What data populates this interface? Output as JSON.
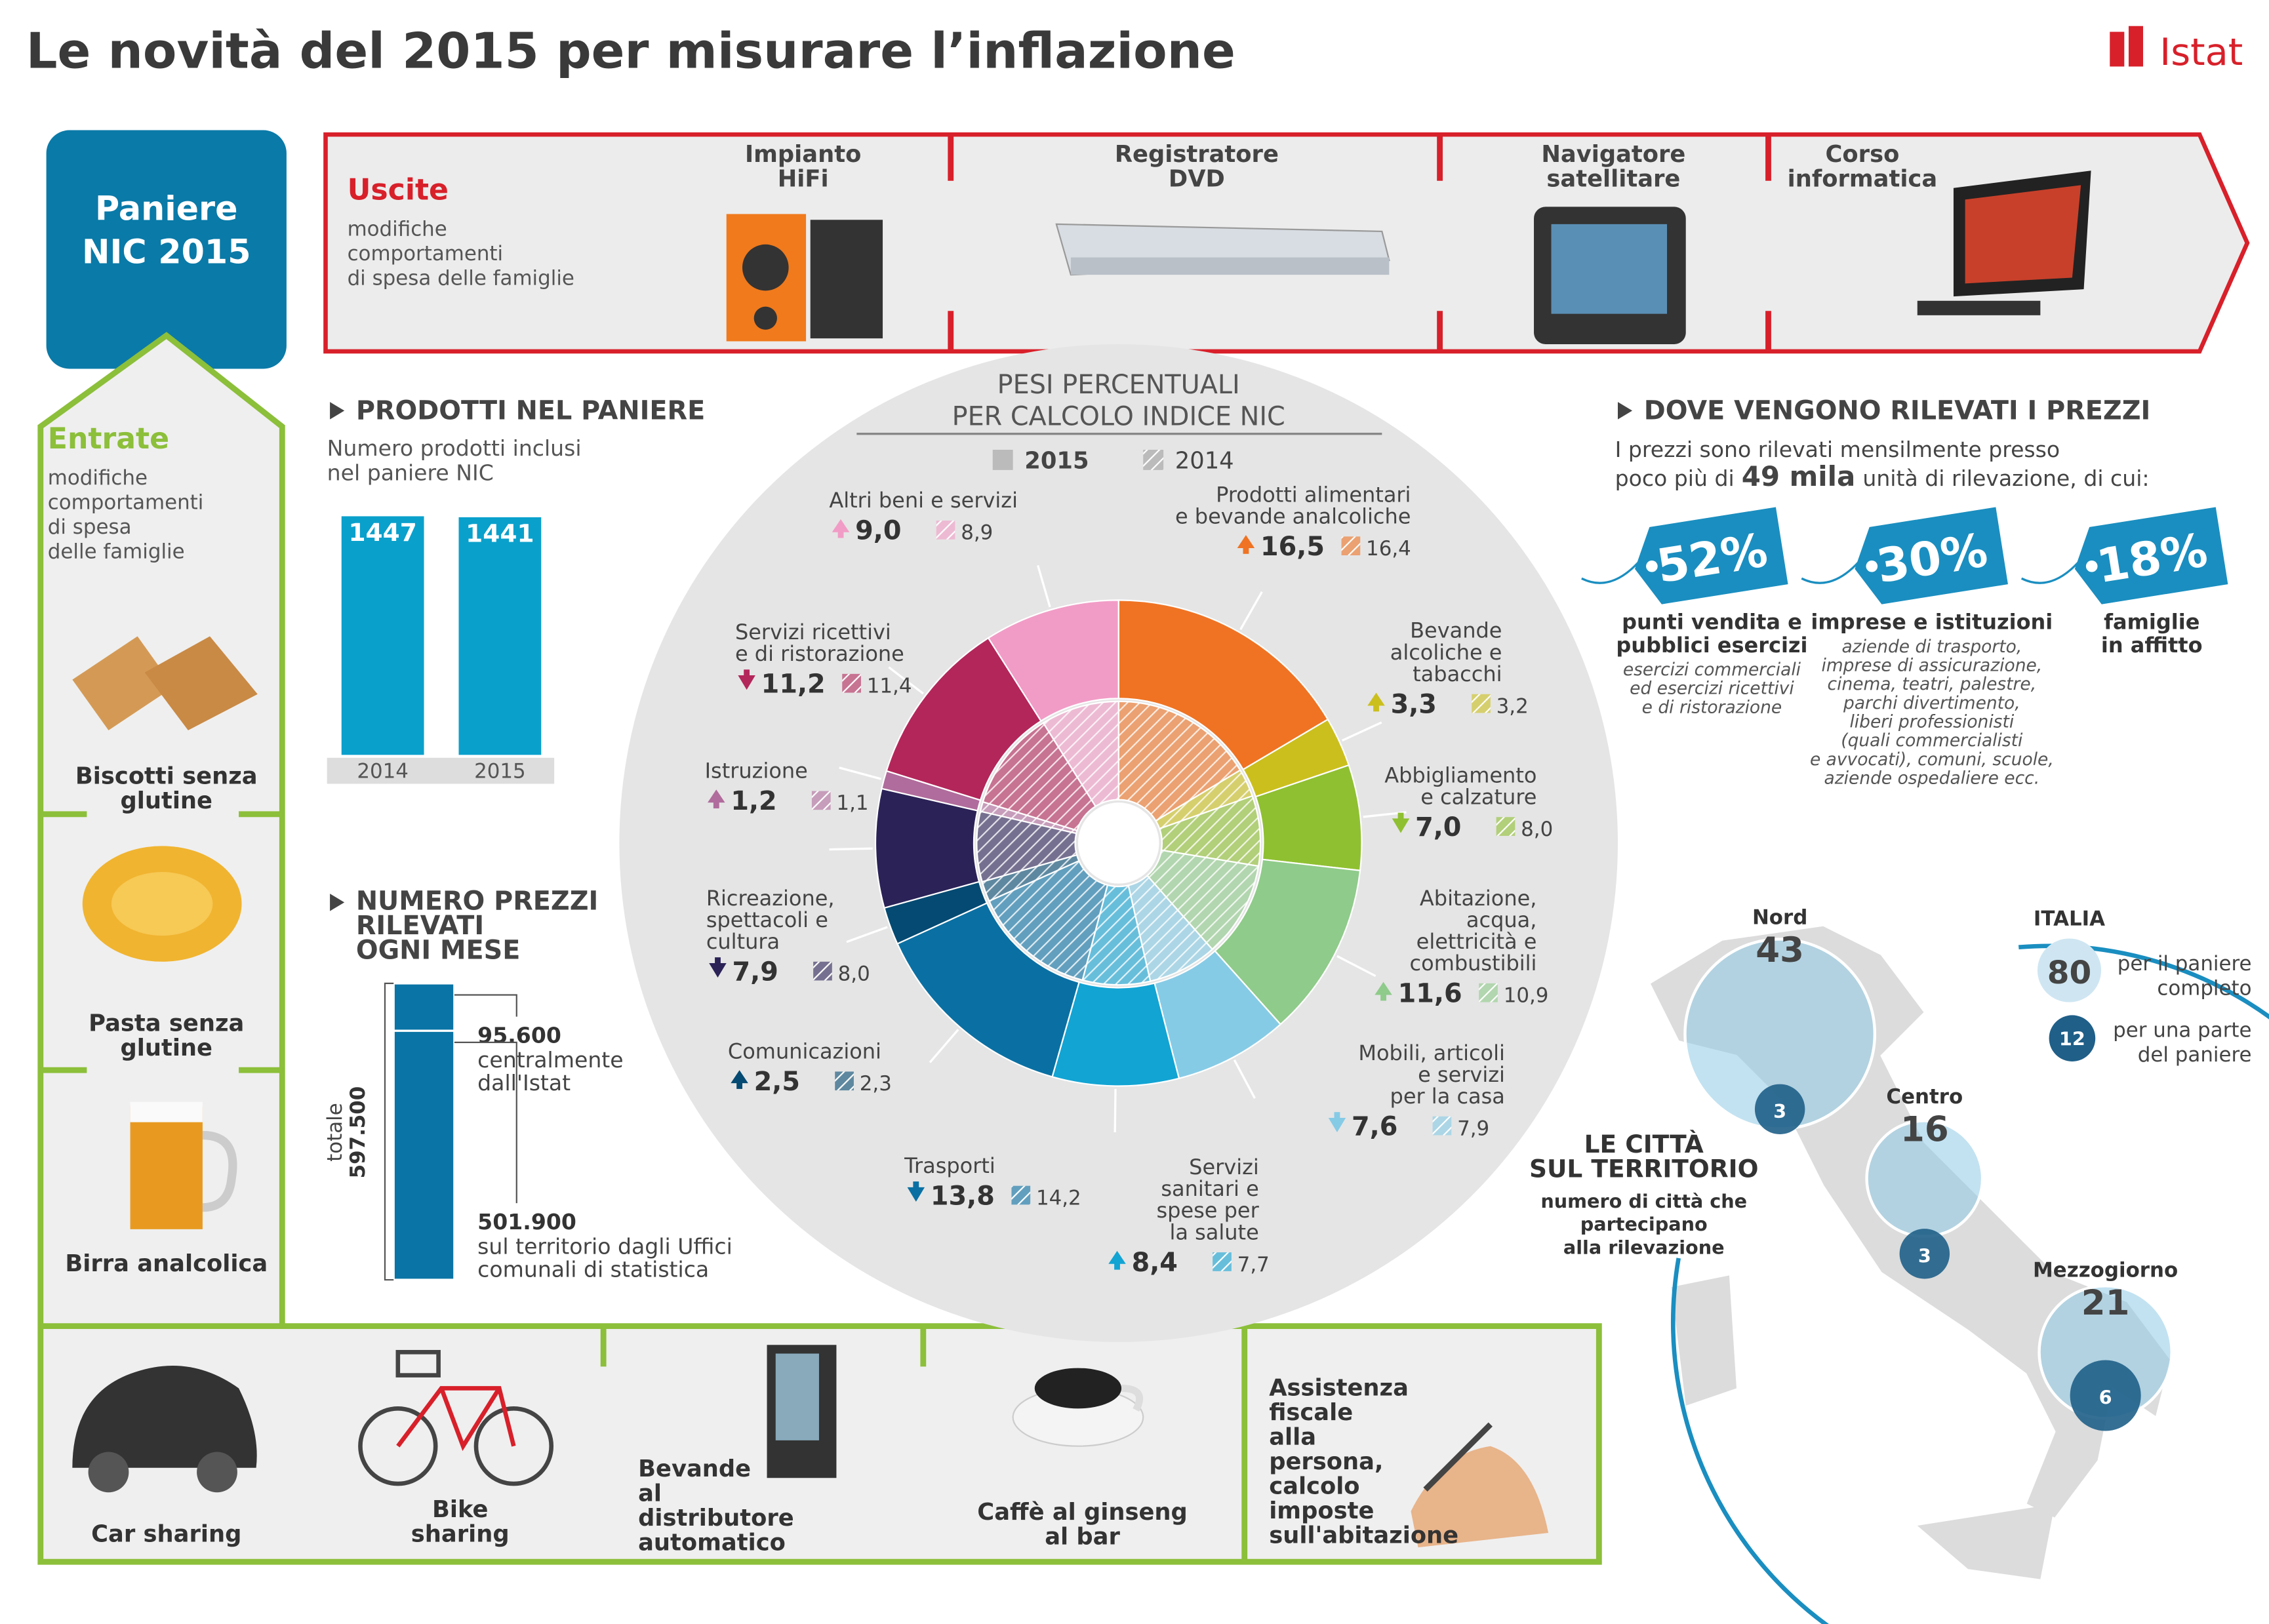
{
  "title": "Le novità del 2015 per misurare l’inflazione",
  "logo": "Istat",
  "basket": [
    "Paniere",
    "NIC 2015"
  ],
  "exits": {
    "label": "Uscite",
    "description": [
      "modifiche",
      "comportamenti",
      "di spesa delle famiglie"
    ],
    "items": [
      [
        "Impianto",
        "HiFi"
      ],
      [
        "Registratore",
        "DVD"
      ],
      [
        "Navigatore",
        "satellitare"
      ],
      [
        "Corso",
        "informatica"
      ]
    ]
  },
  "entries": {
    "label": "Entrate",
    "description": [
      "modifiche",
      "comportamenti",
      "di spesa",
      "delle famiglie"
    ],
    "items": [
      [
        "Biscotti senza",
        "glutine"
      ],
      [
        "Pasta senza",
        "glutine"
      ],
      [
        "Birra analcolica"
      ],
      [
        "Car sharing"
      ],
      [
        "Bike",
        "sharing"
      ],
      [
        "Bevande",
        "al",
        "distributore",
        "automatico"
      ],
      [
        "Caffè al ginseng",
        "al bar"
      ],
      [
        "Assistenza",
        "fiscale",
        "alla",
        "persona,",
        "calcolo",
        "imposte",
        "sull'abitazione"
      ]
    ]
  },
  "products": {
    "heading": "PRODOTTI NEL PANIERE",
    "subtitle": [
      "Numero prodotti inclusi",
      "nel paniere NIC"
    ],
    "categories": [
      "2014",
      "2015"
    ],
    "values": [
      1447,
      1441
    ],
    "color": "#0aa0cc"
  },
  "prices": {
    "heading": [
      "NUMERO PREZZI",
      "RILEVATI",
      "OGNI MESE"
    ],
    "total_label": "totale",
    "total": {
      "value": 597500,
      "label": "597.500"
    },
    "color": "#0a74a6",
    "parts": [
      {
        "value": 95600,
        "label": "95.600",
        "text": [
          "centralmente",
          "dall'Istat"
        ]
      },
      {
        "value": 501900,
        "label": "501.900",
        "text": [
          "sul territorio dagli Uffici",
          "comunali di statistica"
        ]
      }
    ]
  },
  "weights": {
    "title": [
      "PESI PERCENTUALI",
      "PER CALCOLO INDICE NIC"
    ],
    "categories": [
      [
        "Prodotti alimentari",
        "e bevande analcoliche"
      ],
      [
        "Bevande",
        "alcoliche e",
        "tabacchi"
      ],
      [
        "Abbigliamento",
        "e calzature"
      ],
      [
        "Abitazione,",
        "acqua,",
        "elettricità e",
        "combustibili"
      ],
      [
        "Mobili, articoli",
        "e servizi",
        "per la casa"
      ],
      [
        "Servizi",
        "sanitari e",
        "spese per",
        "la salute"
      ],
      [
        "Trasporti"
      ],
      [
        "Comunicazioni"
      ],
      [
        "Ricreazione,",
        "spettacoli e",
        "cultura"
      ],
      [
        "Istruzione"
      ],
      [
        "Servizi ricettivi",
        "e di ristorazione"
      ],
      [
        "Altri beni e servizi"
      ]
    ],
    "colors": [
      "#ef7323",
      "#cbbf1e",
      "#8fc031",
      "#8fcb8a",
      "#86cbe6",
      "#12a4d3",
      "#0a70a3",
      "#044a72",
      "#2b2257",
      "#b06c9c",
      "#b3265a",
      "#f19cc6"
    ],
    "series": [
      {
        "name": "2015",
        "values": [
          16.5,
          3.3,
          7.0,
          11.6,
          7.6,
          8.4,
          13.8,
          2.5,
          7.9,
          1.2,
          11.2,
          9.0
        ],
        "value_labels": [
          "16,5",
          "3,3",
          "7,0",
          "11,6",
          "7,6",
          "8,4",
          "13,8",
          "2,5",
          "7,9",
          "1,2",
          "11,2",
          "9,0"
        ]
      },
      {
        "name": "2014",
        "values": [
          16.4,
          3.2,
          8.0,
          10.9,
          7.9,
          7.7,
          14.2,
          2.3,
          8.0,
          1.1,
          11.4,
          8.9
        ],
        "value_labels": [
          "16,4",
          "3,2",
          "8,0",
          "10,9",
          "7,9",
          "7,7",
          "14,2",
          "2,3",
          "8,0",
          "1,1",
          "11,4",
          "8,9"
        ]
      }
    ]
  },
  "locations": {
    "heading": "DOVE VENGONO RILEVATI I PREZZI",
    "intro": [
      "I prezzi sono rilevati mensilmente presso",
      "poco più di",
      "49 mila",
      "unità di rilevazione, di cui:"
    ],
    "shares": [
      {
        "label": "52%",
        "name": [
          "punti vendita e",
          "pubblici esercizi"
        ],
        "details": [
          "esercizi commerciali",
          "ed esercizi ricettivi",
          "e di ristorazione"
        ]
      },
      {
        "label": "30%",
        "name": [
          "imprese e istituzioni"
        ],
        "details": [
          "aziende di trasporto,",
          "imprese di assicurazione,",
          "cinema, teatri, palestre,",
          "parchi divertimento,",
          "liberi professionisti",
          "(quali commercialisti",
          "e avvocati), comuni, scuole,",
          "aziende ospedaliere ecc."
        ]
      },
      {
        "label": "18%",
        "name": [
          "famiglie",
          "in affitto"
        ],
        "details": []
      }
    ]
  },
  "cities": {
    "heading": [
      "LE CITTÀ",
      "SUL TERRITORIO"
    ],
    "description": [
      "numero di città che",
      "partecipano",
      "alla rilevazione"
    ],
    "areas": [
      {
        "name": "Nord",
        "complete": 43,
        "partial": 3
      },
      {
        "name": "Centro",
        "complete": 16,
        "partial": 3
      },
      {
        "name": "Mezzogiorno",
        "complete": 21,
        "partial": 6
      }
    ],
    "italy": {
      "name": "ITALIA",
      "complete": 80,
      "complete_text": [
        "per il paniere",
        "completo"
      ],
      "partial": 12,
      "partial_text": [
        "per una parte",
        "del paniere"
      ]
    }
  }
}
